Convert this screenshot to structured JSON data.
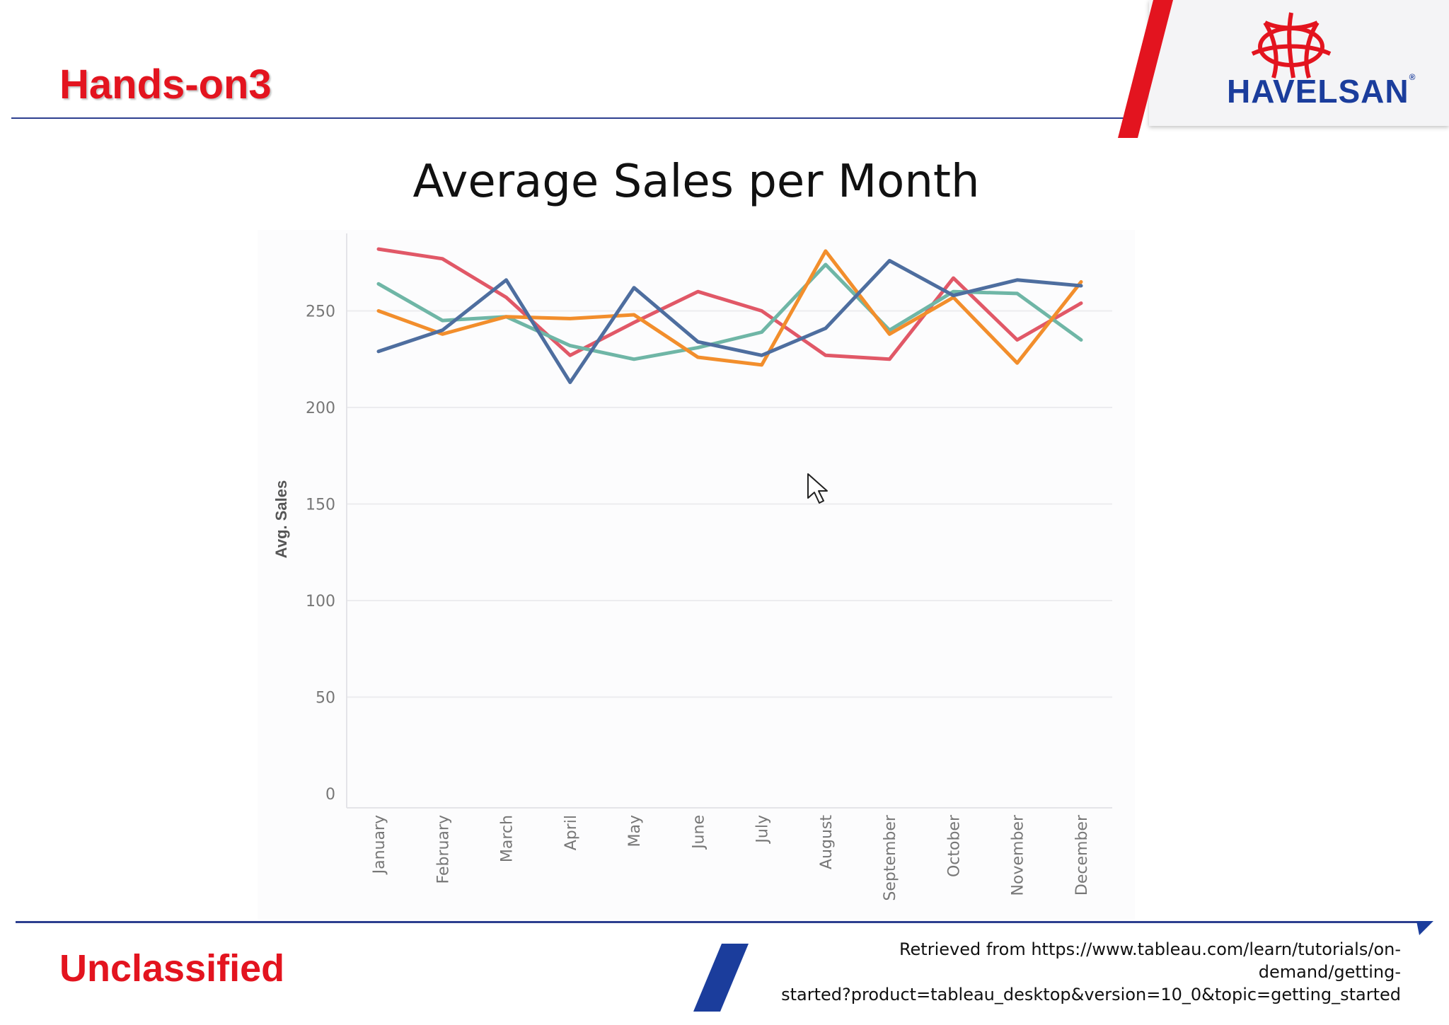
{
  "header": {
    "title": "Hands-on3",
    "logo_text": "HAVELSAN",
    "logo_registered": "®"
  },
  "footer": {
    "classification": "Unclassified",
    "source_lines": [
      "Retrieved from https://www.tableau.com/learn/tutorials/on-",
      "demand/getting-",
      "started?product=tableau_desktop&version=10_0&topic=getting_started"
    ]
  },
  "colors": {
    "brand_red": "#e3141f",
    "brand_blue": "#2d3f8f"
  },
  "icons": {
    "cursor": "mouse-pointer-icon",
    "logo": "havelsan-star-icon"
  },
  "chart_data": {
    "type": "line",
    "title": "Average Sales per Month",
    "xlabel": "",
    "ylabel": "Avg. Sales",
    "ylim": [
      0,
      280
    ],
    "yticks": [
      0,
      50,
      100,
      150,
      200,
      250
    ],
    "grid": true,
    "legend": "none",
    "categories": [
      "January",
      "February",
      "March",
      "April",
      "May",
      "June",
      "July",
      "August",
      "September",
      "October",
      "November",
      "December"
    ],
    "series": [
      {
        "color": "#e15867",
        "values": [
          282,
          277,
          257,
          227,
          244,
          260,
          250,
          227,
          225,
          267,
          235,
          254
        ]
      },
      {
        "color": "#6fb6a6",
        "values": [
          264,
          245,
          247,
          232,
          225,
          231,
          239,
          274,
          240,
          260,
          259,
          235
        ]
      },
      {
        "color": "#f28e2c",
        "values": [
          250,
          238,
          247,
          246,
          248,
          226,
          222,
          281,
          238,
          257,
          223,
          265
        ]
      },
      {
        "color": "#4e6e9f",
        "values": [
          229,
          240,
          266,
          213,
          262,
          234,
          227,
          241,
          276,
          258,
          266,
          263
        ]
      }
    ]
  }
}
